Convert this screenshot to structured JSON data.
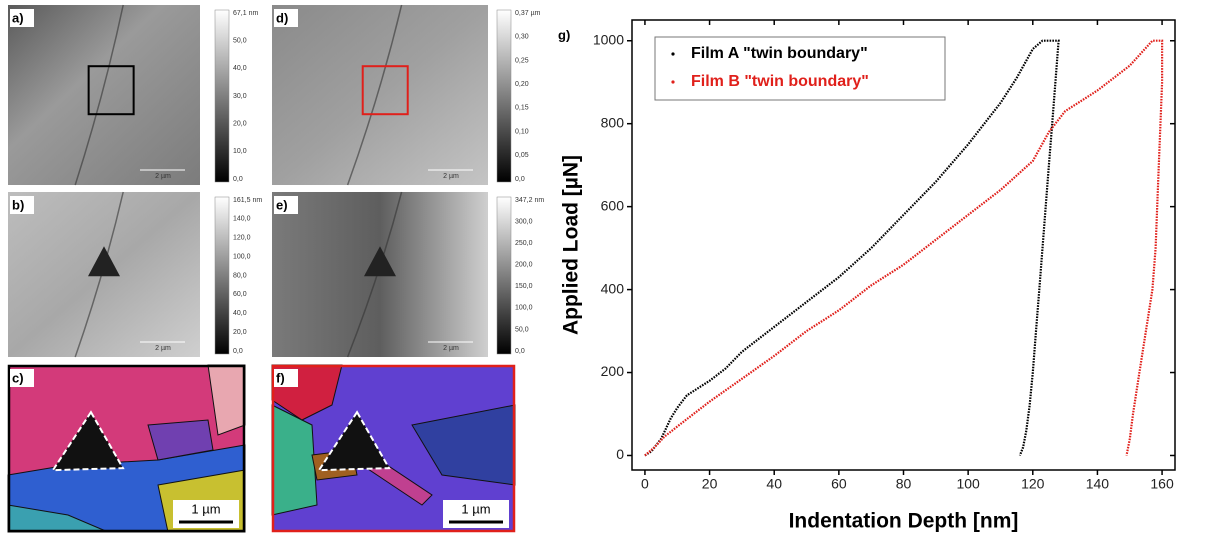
{
  "chart_data": {
    "type": "line",
    "title": "g)",
    "x_label": "Indentation Depth [nm]",
    "y_label": "Applied Load [µN]",
    "xlim": [
      -4,
      164
    ],
    "ylim": [
      -35,
      1050
    ],
    "xticks": [
      0,
      20,
      40,
      60,
      80,
      100,
      120,
      140,
      160
    ],
    "yticks": [
      0,
      200,
      400,
      600,
      800,
      1000
    ],
    "legend": "upper-left",
    "series": [
      {
        "name": "Film A \"twin boundary\"",
        "color": "#000000",
        "x": [
          0,
          2,
          5,
          8,
          10,
          13,
          20,
          25,
          30,
          40,
          50,
          60,
          70,
          80,
          90,
          100,
          110,
          115,
          120,
          123,
          128,
          127,
          126,
          125,
          124,
          123,
          122,
          121,
          120,
          119,
          118,
          117,
          116
        ],
        "values": [
          0,
          10,
          40,
          90,
          115,
          145,
          180,
          210,
          250,
          310,
          370,
          430,
          500,
          580,
          660,
          750,
          850,
          910,
          980,
          1000,
          1000,
          900,
          800,
          700,
          600,
          500,
          400,
          300,
          200,
          120,
          60,
          20,
          0
        ]
      },
      {
        "name": "Film B \"twin boundary\"",
        "color": "#e0201b",
        "x": [
          0,
          3,
          6,
          10,
          20,
          30,
          40,
          50,
          60,
          70,
          80,
          90,
          100,
          110,
          120,
          125,
          130,
          140,
          150,
          157,
          160,
          160,
          159,
          158,
          157,
          155,
          153,
          151,
          150,
          149
        ],
        "values": [
          0,
          20,
          45,
          70,
          130,
          185,
          240,
          300,
          350,
          410,
          460,
          520,
          580,
          640,
          710,
          780,
          830,
          880,
          940,
          1000,
          1000,
          900,
          700,
          500,
          400,
          300,
          200,
          100,
          40,
          0
        ]
      }
    ]
  },
  "panels": [
    {
      "label": "a)",
      "scale": "2 µm",
      "colorbar": [
        "67,1 nm",
        "50,0",
        "40,0",
        "30,0",
        "20,0",
        "10,0",
        "0,0"
      ]
    },
    {
      "label": "b)",
      "scale": "2 µm",
      "colorbar": [
        "161,5 nm",
        "140,0",
        "120,0",
        "100,0",
        "80,0",
        "60,0",
        "40,0",
        "20,0",
        "0,0"
      ]
    },
    {
      "label": "c)",
      "scale": "1 µm"
    },
    {
      "label": "d)",
      "scale": "2 µm",
      "colorbar": [
        "0,37 µm",
        "0,30",
        "0,25",
        "0,20",
        "0,15",
        "0,10",
        "0,05",
        "0,0"
      ]
    },
    {
      "label": "e)",
      "scale": "2 µm",
      "colorbar": [
        "347,2 nm",
        "300,0",
        "250,0",
        "200,0",
        "150,0",
        "100,0",
        "50,0",
        "0,0"
      ]
    },
    {
      "label": "f)",
      "scale": "1 µm"
    }
  ]
}
